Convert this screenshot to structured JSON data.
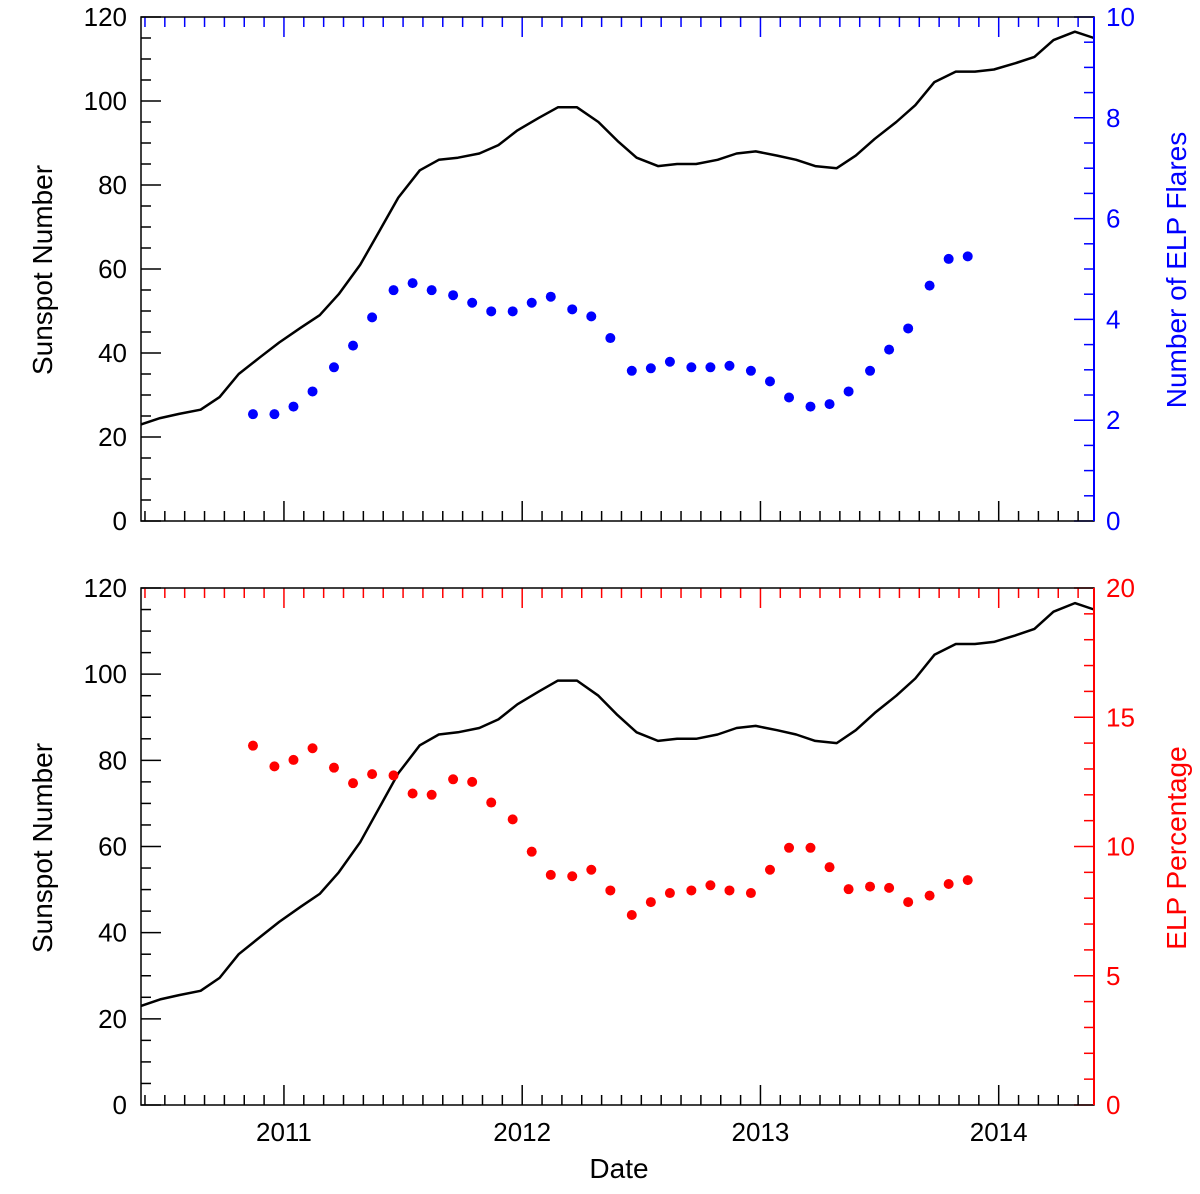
{
  "chart_data": [
    {
      "type": "line+scatter",
      "panel": "top",
      "xlabel": "",
      "ylabel_left": "Sunspot Number",
      "ylabel_right": "Number of ELP Flares",
      "xlim": [
        2010.4,
        2014.4
      ],
      "ylim_left": [
        0,
        120
      ],
      "ylim_right": [
        0,
        10
      ],
      "left_ticks": [
        0,
        20,
        40,
        60,
        80,
        100,
        120
      ],
      "right_ticks": [
        0,
        2,
        4,
        6,
        8,
        10
      ],
      "colors": {
        "line": "#000000",
        "points": "#0000ff",
        "right_axis": "#0000ff"
      },
      "series": [
        {
          "name": "Sunspot Number",
          "axis": "left",
          "x": [
            2010.4,
            2010.48,
            2010.56,
            2010.65,
            2010.73,
            2010.81,
            2010.9,
            2010.98,
            2011.07,
            2011.15,
            2011.23,
            2011.32,
            2011.4,
            2011.48,
            2011.57,
            2011.65,
            2011.73,
            2011.82,
            2011.9,
            2011.98,
            2012.07,
            2012.15,
            2012.23,
            2012.32,
            2012.4,
            2012.48,
            2012.57,
            2012.65,
            2012.73,
            2012.82,
            2012.9,
            2012.98,
            2013.07,
            2013.15,
            2013.23,
            2013.32,
            2013.4,
            2013.48,
            2013.57,
            2013.65,
            2013.73,
            2013.82,
            2013.9,
            2013.98,
            2014.07,
            2014.15,
            2014.23,
            2014.32,
            2014.4
          ],
          "y": [
            23,
            24.5,
            25.5,
            26.5,
            29.5,
            35,
            39,
            42.5,
            46,
            49,
            54,
            61,
            69,
            77,
            83.5,
            86,
            86.5,
            87.5,
            89.5,
            93,
            96,
            98.5,
            98.5,
            95,
            90.5,
            86.5,
            84.5,
            85,
            85,
            86,
            87.5,
            88,
            87,
            86,
            84.5,
            84,
            87,
            91,
            95,
            99,
            104.5,
            107,
            107,
            107.5,
            109,
            110.5,
            114.5,
            116.5,
            115
          ]
        },
        {
          "name": "Number of ELP Flares",
          "axis": "right",
          "x": [
            2010.87,
            2010.96,
            2011.04,
            2011.12,
            2011.21,
            2011.29,
            2011.37,
            2011.46,
            2011.54,
            2011.62,
            2011.71,
            2011.79,
            2011.87,
            2011.96,
            2012.04,
            2012.12,
            2012.21,
            2012.29,
            2012.37,
            2012.46,
            2012.54,
            2012.62,
            2012.71,
            2012.79,
            2012.87,
            2012.96,
            2013.04,
            2013.12,
            2013.21,
            2013.29,
            2013.37,
            2013.46,
            2013.54,
            2013.62,
            2013.71,
            2013.79,
            2013.87
          ],
          "y": [
            2.12,
            2.12,
            2.27,
            2.57,
            3.05,
            3.48,
            4.04,
            4.58,
            4.72,
            4.58,
            4.48,
            4.33,
            4.16,
            4.16,
            4.33,
            4.45,
            4.2,
            4.06,
            3.63,
            2.98,
            3.03,
            3.16,
            3.05,
            3.05,
            3.08,
            2.98,
            2.77,
            2.45,
            2.27,
            2.32,
            2.57,
            2.98,
            3.4,
            3.82,
            4.67,
            5.2,
            5.25
          ]
        }
      ]
    },
    {
      "type": "line+scatter",
      "panel": "bottom",
      "xlabel": "Date",
      "ylabel_left": "Sunspot Number",
      "ylabel_right": "ELP Percentage",
      "xlim": [
        2010.4,
        2014.4
      ],
      "ylim_left": [
        0,
        120
      ],
      "ylim_right": [
        0,
        20
      ],
      "left_ticks": [
        0,
        20,
        40,
        60,
        80,
        100,
        120
      ],
      "right_ticks": [
        0,
        5,
        10,
        15,
        20
      ],
      "x_ticks": [
        2011,
        2012,
        2013,
        2014
      ],
      "colors": {
        "line": "#000000",
        "points": "#ff0000",
        "right_axis": "#ff0000"
      },
      "series": [
        {
          "name": "Sunspot Number",
          "axis": "left",
          "x": [
            2010.4,
            2010.48,
            2010.56,
            2010.65,
            2010.73,
            2010.81,
            2010.9,
            2010.98,
            2011.07,
            2011.15,
            2011.23,
            2011.32,
            2011.4,
            2011.48,
            2011.57,
            2011.65,
            2011.73,
            2011.82,
            2011.9,
            2011.98,
            2012.07,
            2012.15,
            2012.23,
            2012.32,
            2012.4,
            2012.48,
            2012.57,
            2012.65,
            2012.73,
            2012.82,
            2012.9,
            2012.98,
            2013.07,
            2013.15,
            2013.23,
            2013.32,
            2013.4,
            2013.48,
            2013.57,
            2013.65,
            2013.73,
            2013.82,
            2013.9,
            2013.98,
            2014.07,
            2014.15,
            2014.23,
            2014.32,
            2014.4
          ],
          "y": [
            23,
            24.5,
            25.5,
            26.5,
            29.5,
            35,
            39,
            42.5,
            46,
            49,
            54,
            61,
            69,
            77,
            83.5,
            86,
            86.5,
            87.5,
            89.5,
            93,
            96,
            98.5,
            98.5,
            95,
            90.5,
            86.5,
            84.5,
            85,
            85,
            86,
            87.5,
            88,
            87,
            86,
            84.5,
            84,
            87,
            91,
            95,
            99,
            104.5,
            107,
            107,
            107.5,
            109,
            110.5,
            114.5,
            116.5,
            115
          ]
        },
        {
          "name": "ELP Percentage",
          "axis": "right",
          "x": [
            2010.87,
            2010.96,
            2011.04,
            2011.12,
            2011.21,
            2011.29,
            2011.37,
            2011.46,
            2011.54,
            2011.62,
            2011.71,
            2011.79,
            2011.87,
            2011.96,
            2012.04,
            2012.12,
            2012.21,
            2012.29,
            2012.37,
            2012.46,
            2012.54,
            2012.62,
            2012.71,
            2012.79,
            2012.87,
            2012.96,
            2013.04,
            2013.12,
            2013.21,
            2013.29,
            2013.37,
            2013.46,
            2013.54,
            2013.62,
            2013.71,
            2013.79,
            2013.87
          ],
          "y": [
            13.9,
            13.1,
            13.35,
            13.8,
            13.05,
            12.45,
            12.8,
            12.75,
            12.05,
            12.0,
            12.6,
            12.5,
            11.7,
            11.05,
            9.8,
            8.9,
            8.85,
            9.1,
            8.3,
            7.35,
            7.85,
            8.2,
            8.3,
            8.5,
            8.3,
            8.2,
            9.1,
            9.95,
            9.95,
            9.2,
            8.35,
            8.45,
            8.4,
            7.85,
            8.1,
            8.55,
            8.7
          ]
        }
      ]
    }
  ]
}
